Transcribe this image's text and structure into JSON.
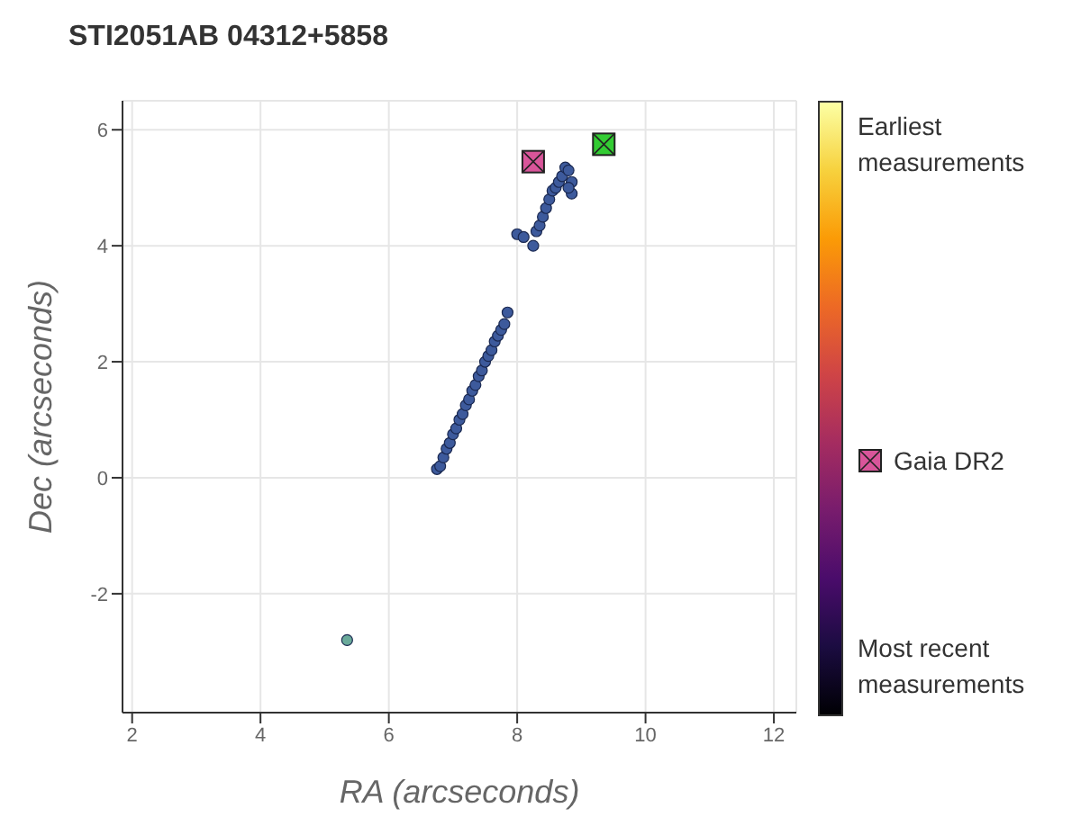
{
  "chart_data": {
    "type": "scatter",
    "title": "STI2051AB 04312+5858",
    "xlabel": "RA (arcseconds)",
    "ylabel": "Dec (arcseconds)",
    "xlim": [
      1.85,
      12.35
    ],
    "xticks": [
      2,
      4,
      6,
      8,
      10,
      12
    ],
    "ylim": [
      -4.05,
      6.5
    ],
    "yticks": [
      -2,
      0,
      2,
      4,
      6
    ],
    "grid": true,
    "legend": "right",
    "marker": "circle",
    "clim": [
      0,
      1
    ],
    "cticks": [
      {
        "value": 1,
        "label": "Earliest measurements"
      },
      {
        "value": 0,
        "label": "Most recent measurements"
      }
    ],
    "series": [
      {
        "color": "#3d5a9c",
        "x": [
          6.75,
          6.8,
          6.85,
          6.9,
          6.95,
          7.0,
          7.05,
          7.1,
          7.15,
          7.2,
          7.25,
          7.3,
          7.35,
          7.4,
          7.45,
          7.5,
          7.55,
          7.6,
          7.65,
          7.7,
          7.75,
          7.8,
          7.85,
          8.0,
          8.1,
          8.25,
          8.3,
          8.35,
          8.4,
          8.45,
          8.5,
          8.55,
          8.6,
          8.65,
          8.7,
          8.75,
          8.8,
          8.85,
          8.85,
          8.8
        ],
        "values": [
          0.15,
          0.2,
          0.35,
          0.5,
          0.6,
          0.75,
          0.85,
          1.0,
          1.1,
          1.25,
          1.35,
          1.5,
          1.6,
          1.75,
          1.85,
          2.0,
          2.1,
          2.2,
          2.35,
          2.45,
          2.55,
          2.65,
          2.85,
          4.2,
          4.15,
          4.0,
          4.25,
          4.35,
          4.5,
          4.65,
          4.8,
          4.95,
          5.0,
          5.1,
          5.2,
          5.35,
          5.3,
          5.1,
          4.9,
          5.0
        ]
      },
      {
        "name": "Gaia DR2",
        "color": "#d9559a",
        "marker": "square",
        "x": [
          8.25
        ],
        "values": [
          5.45
        ]
      },
      {
        "color": "#33cc33",
        "marker": "square",
        "x": [
          9.35
        ],
        "values": [
          5.75
        ]
      },
      {
        "color": "#6aaa9a",
        "x": [
          5.35
        ],
        "values": [
          -2.8
        ]
      }
    ]
  }
}
